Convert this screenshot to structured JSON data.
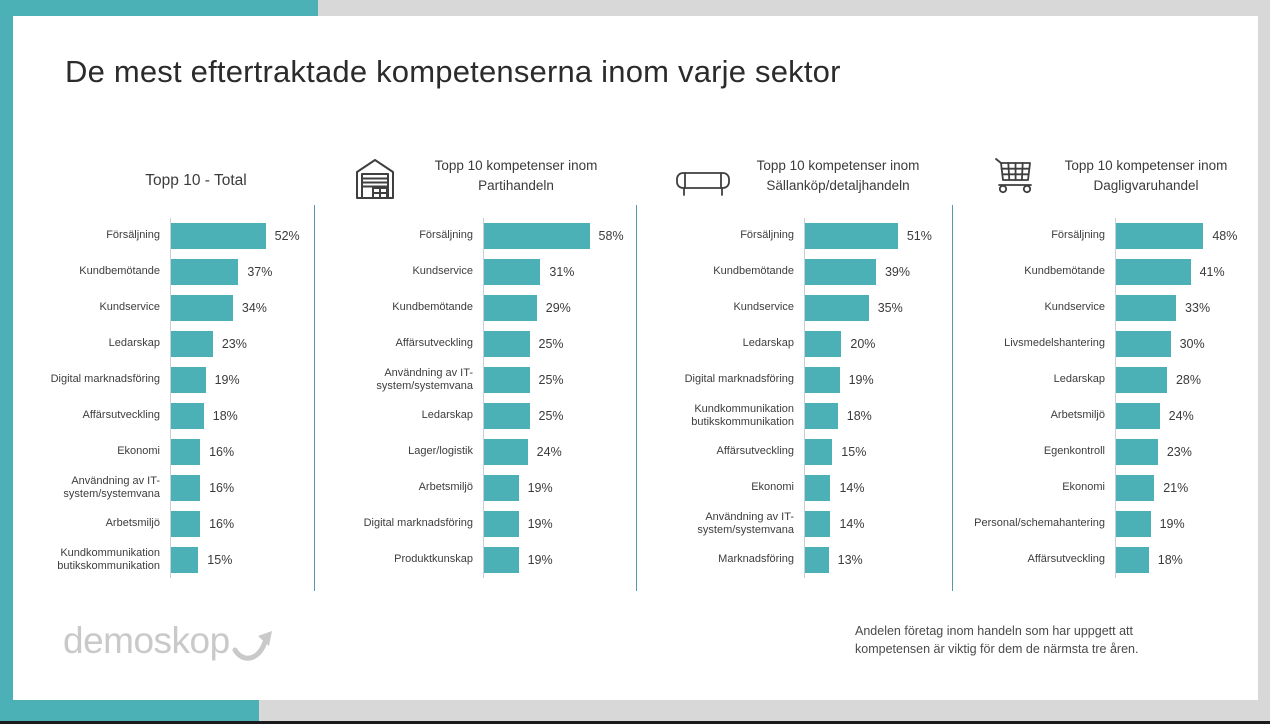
{
  "slide": {
    "title": "De mest eftertraktade kompetenserna inom varje sektor",
    "footnote": "Andelen företag inom handeln som har uppgett att kompetensen är viktig för dem de närmsta tre åren.",
    "logo": {
      "text": "demoskop",
      "arrow_icon": "curved-arrow-icon"
    }
  },
  "colors": {
    "accent": "#4cb1b6",
    "bar": "#4cb1b6",
    "separator": "#5598b0",
    "margin_gray": "#d8d8d8",
    "bottom_edge_black": "#1a1a1a",
    "logo_gray": "#c9c9c9"
  },
  "chart_data": [
    {
      "type": "bar",
      "orientation": "horizontal",
      "title": "Topp 10 - Total",
      "icon": null,
      "unit": "%",
      "categories": [
        "Försäljning",
        "Kundbemötande",
        "Kundservice",
        "Ledarskap",
        "Digital marknadsföring",
        "Affärsutveckling",
        "Ekonomi",
        "Användning av IT-system/systemvana",
        "Arbetsmiljö",
        "Kundkommunikation butikskommunikation"
      ],
      "values": [
        52,
        37,
        34,
        23,
        19,
        18,
        16,
        16,
        16,
        15
      ]
    },
    {
      "type": "bar",
      "orientation": "horizontal",
      "title": "Topp 10 kompetenser inom Partihandeln",
      "icon": "warehouse-icon",
      "unit": "%",
      "categories": [
        "Försäljning",
        "Kundservice",
        "Kundbemötande",
        "Affärsutveckling",
        "Användning av IT-system/systemvana",
        "Ledarskap",
        "Lager/logistik",
        "Arbetsmiljö",
        "Digital marknadsföring",
        "Produktkunskap"
      ],
      "values": [
        58,
        31,
        29,
        25,
        25,
        25,
        24,
        19,
        19,
        19
      ]
    },
    {
      "type": "bar",
      "orientation": "horizontal",
      "title": "Topp 10 kompetenser inom Sällanköp/detaljhandeln",
      "icon": "sofa-icon",
      "unit": "%",
      "categories": [
        "Försäljning",
        "Kundbemötande",
        "Kundservice",
        "Ledarskap",
        "Digital marknadsföring",
        "Kundkommunikation butikskommunikation",
        "Affärsutveckling",
        "Ekonomi",
        "Användning av IT-system/systemvana",
        "Marknadsföring"
      ],
      "values": [
        51,
        39,
        35,
        20,
        19,
        18,
        15,
        14,
        14,
        13
      ]
    },
    {
      "type": "bar",
      "orientation": "horizontal",
      "title": "Topp 10 kompetenser inom Dagligvaruhandel",
      "icon": "shopping-cart-icon",
      "unit": "%",
      "categories": [
        "Försäljning",
        "Kundbemötande",
        "Kundservice",
        "Livsmedelshantering",
        "Ledarskap",
        "Arbetsmiljö",
        "Egenkontroll",
        "Ekonomi",
        "Personal/schemahantering",
        "Affärsutveckling"
      ],
      "values": [
        48,
        41,
        33,
        30,
        28,
        24,
        23,
        21,
        19,
        18
      ]
    }
  ]
}
